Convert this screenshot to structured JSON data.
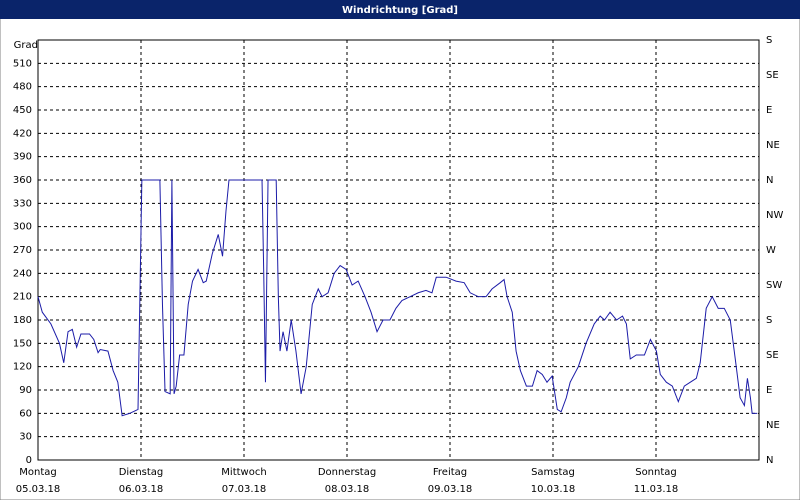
{
  "chart_data": {
    "type": "line",
    "title": "Windrichtung [Grad]",
    "y_label": "Grad",
    "x": [
      0,
      1,
      3,
      5,
      6,
      7,
      8,
      9,
      10,
      12,
      13,
      14,
      14.5,
      16.3,
      17.5,
      18.6,
      19.6,
      21.4,
      23.3,
      24.2,
      28.4,
      29,
      29.6,
      30.8,
      31.2,
      31.7,
      32.2,
      33,
      34,
      35,
      36,
      37.3,
      38.5,
      39.2,
      40.6,
      42,
      43,
      43.8,
      44.5,
      52.2,
      52.6,
      53,
      53.6,
      55.5,
      56,
      56.4,
      57.1,
      58,
      59,
      60.1,
      61.3,
      62.5,
      63.9,
      65.3,
      66.2,
      67.6,
      69,
      70.4,
      71.8,
      73.2,
      74.6,
      76.2,
      77.6,
      79,
      80.4,
      82,
      83.4,
      84.8,
      86.7,
      88.6,
      90.4,
      91.8,
      92.8,
      95.1,
      97.4,
      99.3,
      100.7,
      102.6,
      104.4,
      105.8,
      107.7,
      108.6,
      109.3,
      110.5,
      111.4,
      112.4,
      113.8,
      115.2,
      116.3,
      117.5,
      118.6,
      119.8,
      121,
      121.9,
      123.1,
      124,
      125.9,
      127.7,
      129.6,
      131,
      132,
      133.3,
      134.8,
      136.2,
      137.1,
      138,
      139.4,
      141.3,
      142.7,
      144.1,
      145,
      146.4,
      147.8,
      149.2,
      150.6,
      152,
      153.4,
      154.3,
      155.7,
      157.1,
      158.5,
      159.9,
      161.3,
      162.7,
      163.6,
      164.6,
      165.3,
      166,
      166.4,
      167.6
    ],
    "series": [
      {
        "color": "#1c1ca8",
        "values": [
          210,
          190,
          175,
          150,
          125,
          165,
          168,
          145,
          162,
          162,
          155,
          138,
          142,
          140,
          115,
          100,
          57,
          60,
          65,
          360,
          360,
          200,
          88,
          85,
          360,
          85,
          95,
          135,
          135,
          200,
          230,
          245,
          228,
          230,
          265,
          290,
          262,
          320,
          360,
          360,
          240,
          100,
          360,
          360,
          210,
          140,
          165,
          140,
          180,
          140,
          85,
          120,
          200,
          220,
          210,
          215,
          240,
          250,
          245,
          225,
          230,
          210,
          190,
          165,
          180,
          180,
          195,
          205,
          210,
          215,
          218,
          215,
          235,
          235,
          230,
          228,
          215,
          210,
          210,
          220,
          228,
          232,
          210,
          190,
          140,
          115,
          95,
          95,
          115,
          110,
          100,
          108,
          65,
          62,
          80,
          100,
          120,
          150,
          175,
          185,
          180,
          190,
          180,
          185,
          175,
          130,
          135,
          135,
          155,
          140,
          110,
          100,
          95,
          75,
          95,
          100,
          105,
          125,
          195,
          210,
          195,
          195,
          180,
          120,
          80,
          70,
          105,
          80,
          60,
          60
        ]
      }
    ],
    "xlim": [
      0,
      168
    ],
    "xticks": [
      {
        "value": 0,
        "label": "Montag",
        "date": "05.03.18"
      },
      {
        "value": 24,
        "label": "Dienstag",
        "date": "06.03.18"
      },
      {
        "value": 48,
        "label": "Mittwoch",
        "date": "07.03.18"
      },
      {
        "value": 72,
        "label": "Donnerstag",
        "date": "08.03.18"
      },
      {
        "value": 96,
        "label": "Freitag",
        "date": "09.03.18"
      },
      {
        "value": 120,
        "label": "Samstag",
        "date": "10.03.18"
      },
      {
        "value": 144,
        "label": "Sonntag",
        "date": "11.03.18"
      }
    ],
    "ylim": [
      0,
      540
    ],
    "yticks": [
      0,
      30,
      60,
      90,
      120,
      150,
      180,
      210,
      240,
      270,
      300,
      330,
      360,
      390,
      420,
      450,
      480,
      510
    ],
    "y2lim": [
      0,
      540
    ],
    "y2ticks": [
      {
        "value": 0,
        "label": "N"
      },
      {
        "value": 45,
        "label": "NE"
      },
      {
        "value": 90,
        "label": "E"
      },
      {
        "value": 135,
        "label": "SE"
      },
      {
        "value": 180,
        "label": "S"
      },
      {
        "value": 225,
        "label": "SW"
      },
      {
        "value": 270,
        "label": "W"
      },
      {
        "value": 315,
        "label": "NW"
      },
      {
        "value": 360,
        "label": "N"
      },
      {
        "value": 405,
        "label": "NE"
      },
      {
        "value": 450,
        "label": "E"
      },
      {
        "value": 495,
        "label": "SE"
      },
      {
        "value": 540,
        "label": "S"
      }
    ],
    "grid": true
  }
}
